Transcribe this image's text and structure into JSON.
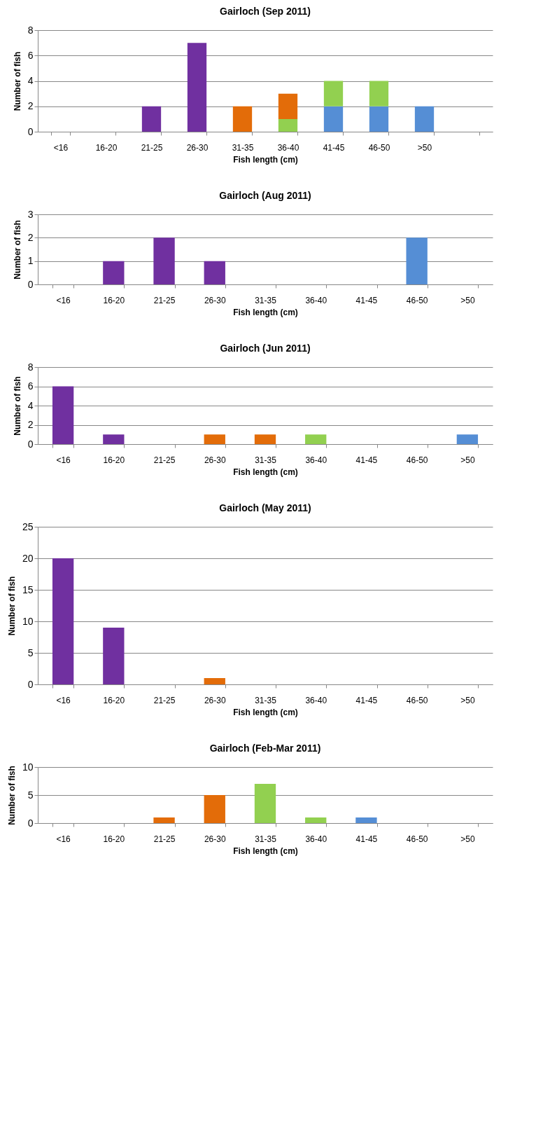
{
  "chart_data": [
    {
      "type": "bar",
      "stacked": true,
      "title": "Gairloch (Sep 2011)",
      "xlabel": "Fish length (cm)",
      "ylabel": "Number of fish",
      "categories": [
        "<16",
        "16-20",
        "21-25",
        "26-30",
        "31-35",
        "36-40",
        "41-45",
        "46-50",
        ">50",
        null
      ],
      "ylim": [
        0,
        8
      ],
      "yticks": [
        0,
        2,
        4,
        6,
        8
      ],
      "grid": "y",
      "legend": false,
      "series": [
        {
          "color": "#558ed5",
          "values": [
            null,
            null,
            null,
            null,
            null,
            null,
            2,
            2,
            2,
            null
          ]
        },
        {
          "color": "#92d050",
          "values": [
            null,
            null,
            null,
            null,
            null,
            1,
            2,
            2,
            null,
            null
          ]
        },
        {
          "color": "#e36c09",
          "values": [
            null,
            null,
            null,
            null,
            2,
            2,
            null,
            null,
            null,
            null
          ]
        },
        {
          "color": "#7030a0",
          "values": [
            null,
            null,
            2,
            7,
            null,
            null,
            null,
            null,
            null,
            null
          ]
        }
      ]
    },
    {
      "type": "bar",
      "stacked": true,
      "title": "Gairloch (Aug 2011)",
      "xlabel": "Fish length (cm)",
      "ylabel": "Number of fish",
      "categories": [
        "<16",
        "16-20",
        "21-25",
        "26-30",
        "31-35",
        "36-40",
        "41-45",
        "46-50",
        ">50"
      ],
      "ylim": [
        0,
        3
      ],
      "yticks": [
        0,
        1,
        2,
        3
      ],
      "grid": "y",
      "legend": false,
      "series": [
        {
          "color": "#558ed5",
          "values": [
            null,
            null,
            null,
            null,
            null,
            null,
            null,
            2,
            null
          ]
        },
        {
          "color": "#7030a0",
          "values": [
            null,
            1,
            2,
            1,
            null,
            null,
            null,
            null,
            null
          ]
        }
      ]
    },
    {
      "type": "bar",
      "stacked": true,
      "title": "Gairloch (Jun 2011)",
      "xlabel": "Fish length (cm)",
      "ylabel": "Number of fish",
      "categories": [
        "<16",
        "16-20",
        "21-25",
        "26-30",
        "31-35",
        "36-40",
        "41-45",
        "46-50",
        ">50"
      ],
      "ylim": [
        0,
        8
      ],
      "yticks": [
        0,
        2,
        4,
        6,
        8
      ],
      "grid": "y",
      "legend": false,
      "series": [
        {
          "color": "#558ed5",
          "values": [
            null,
            null,
            null,
            null,
            null,
            null,
            null,
            null,
            1
          ]
        },
        {
          "color": "#92d050",
          "values": [
            null,
            null,
            null,
            null,
            null,
            1,
            null,
            null,
            null
          ]
        },
        {
          "color": "#e36c09",
          "values": [
            null,
            null,
            null,
            1,
            1,
            null,
            null,
            null,
            null
          ]
        },
        {
          "color": "#7030a0",
          "values": [
            6,
            1,
            null,
            null,
            null,
            null,
            null,
            null,
            null
          ]
        }
      ]
    },
    {
      "type": "bar",
      "stacked": true,
      "title": "Gairloch (May 2011)",
      "xlabel": "Fish length (cm)",
      "ylabel": "Number of fish",
      "categories": [
        "<16",
        "16-20",
        "21-25",
        "26-30",
        "31-35",
        "36-40",
        "41-45",
        "46-50",
        ">50"
      ],
      "ylim": [
        0,
        25
      ],
      "yticks": [
        0,
        5,
        10,
        15,
        20,
        25
      ],
      "grid": "y",
      "legend": false,
      "series": [
        {
          "color": "#e36c09",
          "values": [
            null,
            null,
            null,
            1,
            null,
            null,
            null,
            null,
            null
          ]
        },
        {
          "color": "#7030a0",
          "values": [
            20,
            9,
            null,
            null,
            null,
            null,
            null,
            null,
            null
          ]
        }
      ]
    },
    {
      "type": "bar",
      "stacked": true,
      "title": "Gairloch (Feb-Mar 2011)",
      "xlabel": "Fish length (cm)",
      "ylabel": "Number of fish",
      "categories": [
        "<16",
        "16-20",
        "21-25",
        "26-30",
        "31-35",
        "36-40",
        "41-45",
        "46-50",
        ">50"
      ],
      "ylim": [
        0,
        10
      ],
      "yticks": [
        0,
        5,
        10
      ],
      "grid": "y",
      "legend": false,
      "series": [
        {
          "color": "#558ed5",
          "values": [
            null,
            null,
            null,
            null,
            null,
            null,
            1,
            null,
            null
          ]
        },
        {
          "color": "#92d050",
          "values": [
            null,
            null,
            null,
            null,
            7,
            1,
            null,
            null,
            null
          ]
        },
        {
          "color": "#e36c09",
          "values": [
            null,
            null,
            1,
            5,
            null,
            null,
            null,
            null,
            null
          ]
        }
      ]
    }
  ]
}
